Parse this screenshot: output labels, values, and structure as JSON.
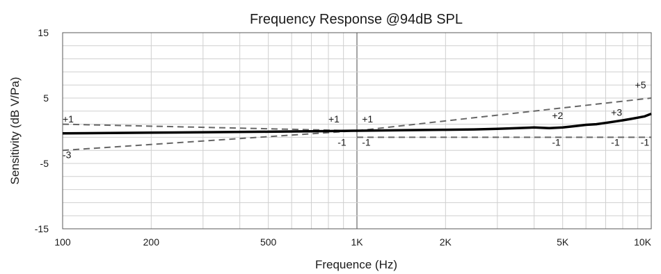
{
  "chart_data": {
    "type": "line",
    "title": "Frequency Response @94dB SPL",
    "xlabel": "Frequence (Hz)",
    "ylabel": "Sensitivity (dB V/Pa)",
    "x_scale": "log",
    "xlim": [
      100,
      10000
    ],
    "ylim": [
      -15,
      15
    ],
    "grid": true,
    "legend": "none",
    "x_ticks": [
      {
        "value": 100,
        "label": "100"
      },
      {
        "value": 200,
        "label": "200"
      },
      {
        "value": 500,
        "label": "500"
      },
      {
        "value": 1000,
        "label": "1K"
      },
      {
        "value": 2000,
        "label": "2K"
      },
      {
        "value": 5000,
        "label": "5K"
      },
      {
        "value": 10000,
        "label": "10K"
      }
    ],
    "y_ticks": [
      {
        "value": 15,
        "label": "15"
      },
      {
        "value": 5,
        "label": "5"
      },
      {
        "value": -5,
        "label": "-5"
      },
      {
        "value": -15,
        "label": "-15"
      }
    ],
    "series": [
      {
        "style": "solid",
        "x": [
          100,
          200,
          500,
          800,
          1000,
          1500,
          2000,
          2500,
          3000,
          3500,
          4000,
          4500,
          5000,
          5500,
          6000,
          6500,
          7000,
          7500,
          8000,
          8500,
          9000,
          9500,
          10000
        ],
        "y": [
          -0.4,
          -0.3,
          -0.15,
          -0.05,
          0.0,
          0.1,
          0.15,
          0.2,
          0.3,
          0.4,
          0.5,
          0.4,
          0.5,
          0.7,
          0.9,
          1.0,
          1.2,
          1.4,
          1.6,
          1.8,
          2.0,
          2.2,
          2.6
        ]
      },
      {
        "style": "dashed",
        "x": [
          100,
          1000
        ],
        "y": [
          1,
          0
        ]
      },
      {
        "style": "dashed",
        "x": [
          100,
          1000
        ],
        "y": [
          -3,
          0
        ]
      },
      {
        "style": "dashed",
        "x": [
          1000,
          10000
        ],
        "y": [
          0,
          5
        ]
      },
      {
        "style": "dashed",
        "x": [
          1000,
          10000
        ],
        "y": [
          -1,
          -1
        ]
      }
    ],
    "annotations": [
      {
        "text": "+1",
        "x": 100,
        "y": 1.3,
        "anchor": "start"
      },
      {
        "text": "-3",
        "x": 100,
        "y": -4.2,
        "anchor": "start"
      },
      {
        "text": "+1",
        "x": 800,
        "y": 1.3,
        "anchor": "start"
      },
      {
        "text": "-1",
        "x": 920,
        "y": -2.3,
        "anchor": "end"
      },
      {
        "text": "+1",
        "x": 1040,
        "y": 1.3,
        "anchor": "start"
      },
      {
        "text": "-1",
        "x": 1040,
        "y": -2.3,
        "anchor": "start"
      },
      {
        "text": "+2",
        "x": 4600,
        "y": 1.8,
        "anchor": "start"
      },
      {
        "text": "-1",
        "x": 4600,
        "y": -2.3,
        "anchor": "start"
      },
      {
        "text": "+3",
        "x": 7300,
        "y": 2.3,
        "anchor": "start"
      },
      {
        "text": "-1",
        "x": 7300,
        "y": -2.3,
        "anchor": "start"
      },
      {
        "text": "+5",
        "x": 8800,
        "y": 6.5,
        "anchor": "start"
      },
      {
        "text": "-1",
        "x": 9200,
        "y": -2.3,
        "anchor": "start"
      }
    ]
  }
}
